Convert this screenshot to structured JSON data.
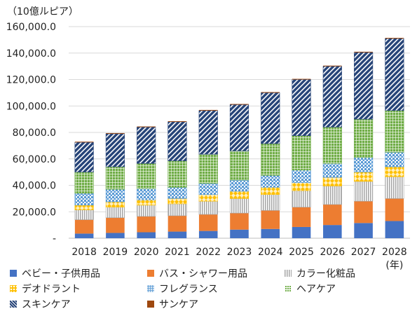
{
  "chart_data": {
    "type": "bar",
    "stacked": true,
    "title": "",
    "ylabel": "（10億ルピア）",
    "xlabel": "(年)",
    "ylim": [
      0,
      160000
    ],
    "yticks": [
      "-",
      "20,000.0",
      "40,000.0",
      "60,000.0",
      "80,000.0",
      "100,000.0",
      "120,000.0",
      "140,000.0",
      "160,000.0"
    ],
    "categories": [
      "2018",
      "2019",
      "2020",
      "2021",
      "2022",
      "2023",
      "2024",
      "2025",
      "2026",
      "2027",
      "2028"
    ],
    "grid": true,
    "legend_position": "bottom",
    "series": [
      {
        "name": "ベビー・子供用品",
        "color": "#4472c4",
        "pattern": "solid",
        "values": [
          3500,
          4000,
          4500,
          5000,
          5500,
          6500,
          7000,
          8500,
          10000,
          11500,
          13000
        ]
      },
      {
        "name": "バス・シャワー用品",
        "color": "#ed7d31",
        "pattern": "solid",
        "values": [
          10500,
          11500,
          12000,
          12000,
          12500,
          12500,
          14000,
          15000,
          15500,
          16500,
          17000
        ]
      },
      {
        "name": "カラー化粧品",
        "color": "#a5a5a5",
        "pattern": "vstripes",
        "values": [
          7500,
          8000,
          8500,
          9000,
          10000,
          11000,
          12000,
          12500,
          14000,
          15000,
          16500
        ]
      },
      {
        "name": "デオドラント",
        "color": "#ffc000",
        "pattern": "diamonds",
        "values": [
          3500,
          4000,
          4000,
          4000,
          5000,
          5500,
          5500,
          6000,
          6500,
          7000,
          7500
        ]
      },
      {
        "name": "フレグランス",
        "color": "#5b9bd5",
        "pattern": "dots",
        "values": [
          9000,
          9500,
          8500,
          8500,
          8500,
          8500,
          9000,
          9500,
          10500,
          11000,
          11000
        ]
      },
      {
        "name": "ヘアケア",
        "color": "#70ad47",
        "pattern": "grid",
        "values": [
          16000,
          17000,
          19000,
          20000,
          22000,
          22000,
          24000,
          26000,
          27500,
          29000,
          31500
        ]
      },
      {
        "name": "スキンケア",
        "color": "#264478",
        "pattern": "diag",
        "values": [
          22500,
          25000,
          27500,
          29500,
          33000,
          35000,
          38500,
          42500,
          46000,
          50500,
          54500
        ]
      },
      {
        "name": "サンケア",
        "color": "#9e480e",
        "pattern": "solid",
        "values": [
          500,
          500,
          500,
          500,
          500,
          500,
          500,
          500,
          500,
          500,
          500
        ]
      }
    ]
  }
}
